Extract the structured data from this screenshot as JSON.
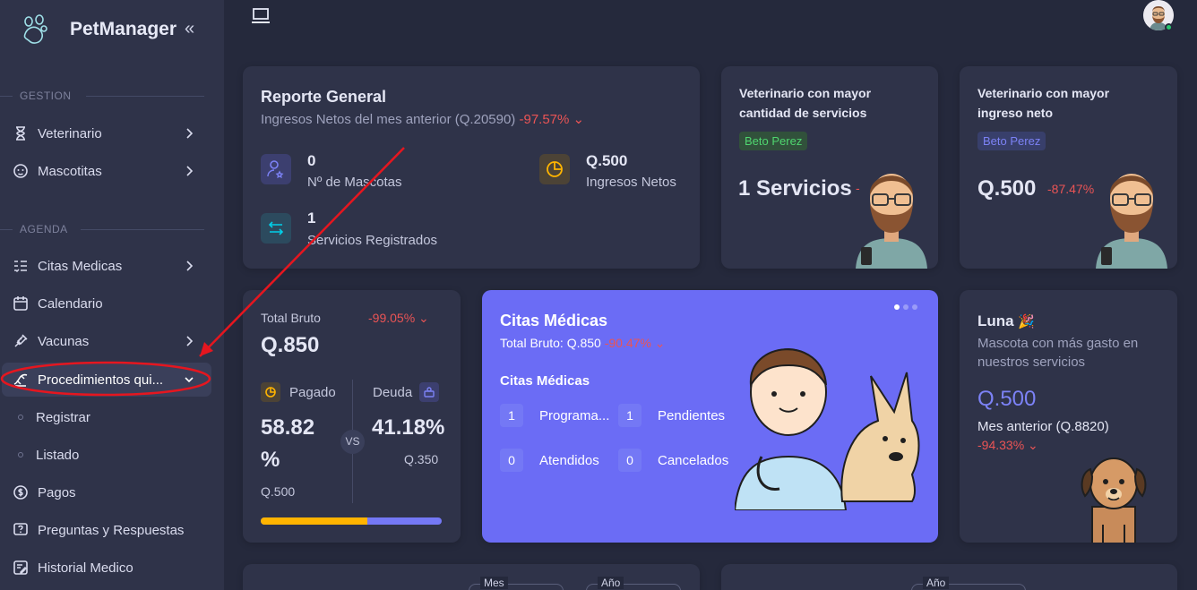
{
  "brand": {
    "name": "PetManager"
  },
  "sidebar": {
    "gestion_label": "GESTION",
    "agenda_label": "AGENDA",
    "items": {
      "veterinario": "Veterinario",
      "mascotitas": "Mascotitas",
      "citas": "Citas Medicas",
      "calendario": "Calendario",
      "vacunas": "Vacunas",
      "procedimientos": "Procedimientos qui...",
      "registrar": "Registrar",
      "listado": "Listado",
      "pagos": "Pagos",
      "preguntas": "Preguntas y Respuestas",
      "historial": "Historial Medico"
    }
  },
  "reporte": {
    "title": "Reporte General",
    "subtitle": "Ingresos Netos del mes anterior (Q.20590)",
    "change": "-97.57%",
    "mascotas_num": "0",
    "mascotas_label": "Nº de Mascotas",
    "ingresos_num": "Q.500",
    "ingresos_label": "Ingresos Netos",
    "servicios_num": "1",
    "servicios_label": "Servicios Registrados"
  },
  "vet_servicios": {
    "title1": "Veterinario con mayor",
    "title2": "cantidad de servicios",
    "badge": "Beto Perez",
    "value": "1 Servicios"
  },
  "vet_ingreso": {
    "title1": "Veterinario con mayor",
    "title2": "ingreso neto",
    "badge": "Beto Perez",
    "value": "Q.500",
    "change": "-87.47%"
  },
  "bruto": {
    "label": "Total Bruto",
    "change": "-99.05%",
    "value": "Q.850",
    "pagado_label": "Pagado",
    "pagado_pct": "58.82",
    "pct_sign": "%",
    "pagado_amount": "Q.500",
    "deuda_label": "Deuda",
    "deuda_pct": "41.18%",
    "deuda_amount": "Q.350",
    "vs": "VS",
    "paid_fraction": 0.5882
  },
  "citas": {
    "title": "Citas Médicas",
    "subtitle": "Total Bruto: Q.850",
    "change": "-90.47%",
    "section": "Citas Médicas",
    "programadas_num": "1",
    "programadas_label": "Programa...",
    "pendientes_num": "1",
    "pendientes_label": "Pendientes",
    "atendidos_num": "0",
    "atendidos_label": "Atendidos",
    "cancelados_num": "0",
    "cancelados_label": "Cancelados"
  },
  "luna": {
    "name": "Luna",
    "desc1": "Mascota con más gasto en",
    "desc2": "nuestros servicios",
    "value": "Q.500",
    "prev": "Mes anterior (Q.8820)",
    "change": "-94.33%"
  },
  "filters": {
    "mes": "Mes",
    "anio1": "Año",
    "anio2": "Año"
  },
  "colors": {
    "primary": "#7367f0",
    "bg": "#25293c",
    "card": "#2f3349",
    "danger": "#ea5455",
    "success": "#28c76f",
    "warning": "#ffb400",
    "annotation": "#e5161f"
  }
}
